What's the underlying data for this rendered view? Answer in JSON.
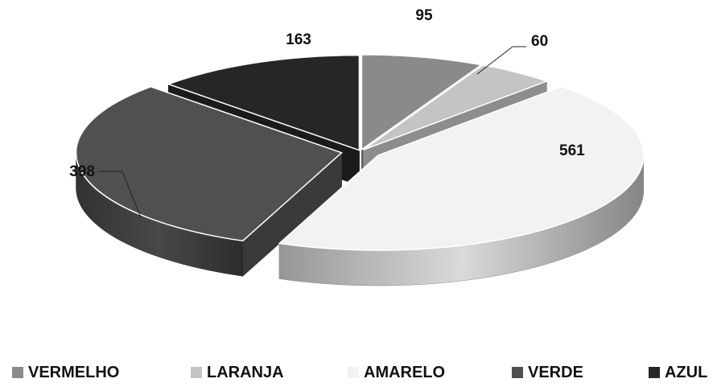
{
  "chart_data": {
    "type": "pie",
    "title": "",
    "categories": [
      "VERMELHO",
      "LARANJA",
      "AMARELO",
      "VERDE",
      "AZUL"
    ],
    "values": [
      95,
      60,
      561,
      398,
      163
    ],
    "colors": [
      "#8a8a8a",
      "#c4c4c4",
      "#f2f2f2",
      "#505050",
      "#262626"
    ],
    "three_d": true,
    "exploded": true,
    "legend_position": "bottom",
    "data_labels": true
  }
}
